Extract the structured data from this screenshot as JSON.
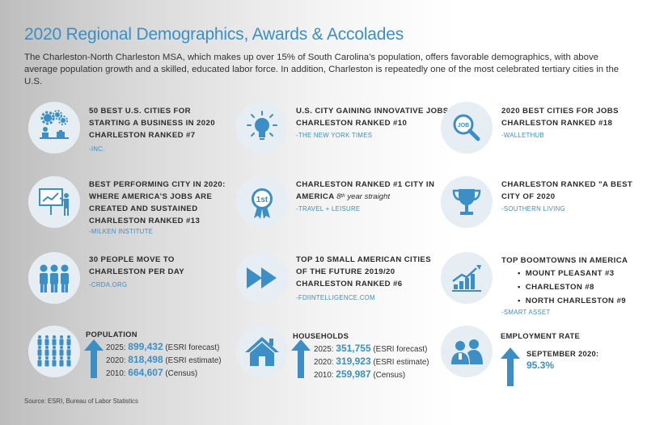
{
  "title": "2020 Regional Demographics, Awards & Accolades",
  "intro": "The Charleston-North Charleston MSA, which makes up over 15% of South Carolina’s population, offers favorable demographics, with above average population growth and a skilled, educated labor force. In addition, Charleston is repeatedly one of the most celebrated tertiary cities in the U.S.",
  "awards": [
    {
      "line1": "50 Best U.S. Cities for",
      "line2": "Starting a Business in 2020",
      "line3": "Charleston Ranked #7",
      "source": "-INC.",
      "icon": "gears-business-icon"
    },
    {
      "line1": "U.S. City Gaining Innovative Jobs",
      "line2": "Charleston Ranked #10",
      "source": "-THE NEW YORK TIMES",
      "icon": "lightbulb-icon"
    },
    {
      "line1": "2020 Best Cities for Jobs",
      "line2": "Charleston Ranked #18",
      "source": "-WALLETHUB",
      "icon": "job-magnifier-icon"
    },
    {
      "line1": "Best Performing City in 2020:",
      "line2": "Where America’s Jobs are",
      "line3": "Created and Sustained",
      "line4": "Charleston Ranked #13",
      "source": "-MILKEN INSTITUTE",
      "icon": "presentation-board-icon"
    },
    {
      "line1": "Charleston Ranked #1 City in",
      "line2": "America",
      "line2_italic": "8",
      "line2_sup": "th",
      "line2_rest": " year straight",
      "source": "-TRAVEL + LEISURE",
      "icon": "first-place-ribbon-icon",
      "ribbon_text": "1st"
    },
    {
      "line1": "Charleston Ranked \"A Best",
      "line2": "City of 2020",
      "source": "-SOUTHERN LIVING",
      "icon": "trophy-icon"
    },
    {
      "line1": "30 People Move to",
      "line2": "Charleston Per Day",
      "source": "-CRDA.ORG",
      "icon": "people-group-icon"
    },
    {
      "line1": "Top 10 Small American Cities",
      "line2": "of the Future 2019/20",
      "line3": "Charleston Ranked #6",
      "source": "-FDIINTELLIGENCE.COM",
      "icon": "fast-forward-icon"
    },
    {
      "line1": "Top Boomtowns in America",
      "bullets": [
        "Mount Pleasant #3",
        "Charleston #8",
        "North Charleston #9"
      ],
      "source": "-SMART ASSET",
      "icon": "growth-chart-icon"
    }
  ],
  "population": {
    "title": "Population",
    "rows": [
      {
        "label": "2025:",
        "value": "899,432",
        "note": "(ESRI forecast)"
      },
      {
        "label": "2020:",
        "value": "818,498",
        "note": "(ESRI estimate)"
      },
      {
        "label": "2010:",
        "value": "664,607",
        "note": "(Census)"
      }
    ]
  },
  "households": {
    "title": "Households",
    "rows": [
      {
        "label": "2025:",
        "value": "351,755",
        "note": "(ESRI forecast)"
      },
      {
        "label": "2020:",
        "value": "319,923",
        "note": "(ESRI estimate)"
      },
      {
        "label": "2010:",
        "value": "259,987",
        "note": "(Census)"
      }
    ]
  },
  "employment": {
    "title": "Employment Rate",
    "label": "September 2020:",
    "value": "95.3%"
  },
  "footer": "Source: ESRI, Bureau of Labor Statistics",
  "colors": {
    "accent": "#3b8fc6",
    "circle": "#e6edf3",
    "text": "#2b2b2b"
  }
}
